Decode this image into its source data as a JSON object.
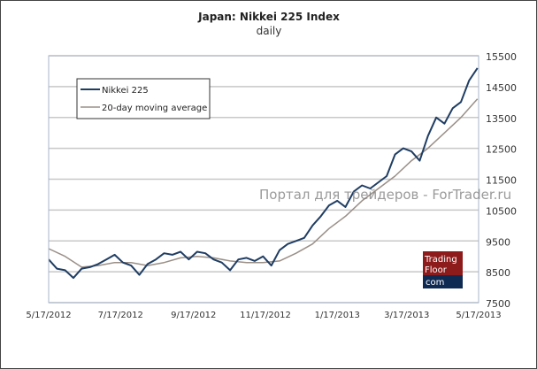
{
  "chart_data": {
    "type": "line",
    "title": "Japan: Nikkei 225 Index",
    "subtitle": "daily",
    "xlabel": "",
    "ylabel": "",
    "x_unit": "days since 5/17/2012",
    "xlim": [
      0,
      365
    ],
    "ylim": [
      7500,
      15500
    ],
    "yticks": [
      7500,
      8500,
      9500,
      10500,
      11500,
      12500,
      13500,
      14500,
      15500
    ],
    "xticks": [
      {
        "day": 0,
        "label": "5/17/2012"
      },
      {
        "day": 61,
        "label": "7/17/2012"
      },
      {
        "day": 123,
        "label": "9/17/2012"
      },
      {
        "day": 184,
        "label": "11/17/2012"
      },
      {
        "day": 245,
        "label": "1/17/2013"
      },
      {
        "day": 304,
        "label": "3/17/2013"
      },
      {
        "day": 365,
        "label": "5/17/2013"
      }
    ],
    "grid": true,
    "legend_position": "top-left",
    "series": [
      {
        "name": "Nikkei 225",
        "color": "#1f3d63",
        "x": [
          0,
          7,
          14,
          21,
          28,
          35,
          42,
          49,
          56,
          63,
          70,
          77,
          84,
          91,
          98,
          105,
          112,
          119,
          126,
          133,
          140,
          147,
          154,
          161,
          168,
          175,
          182,
          189,
          196,
          203,
          210,
          217,
          224,
          231,
          238,
          245,
          252,
          259,
          266,
          273,
          280,
          287,
          294,
          301,
          308,
          315,
          322,
          329,
          336,
          343,
          350,
          357,
          364
        ],
        "values": [
          8900,
          8600,
          8550,
          8300,
          8600,
          8650,
          8750,
          8900,
          9050,
          8800,
          8700,
          8400,
          8750,
          8900,
          9100,
          9050,
          9150,
          8900,
          9150,
          9100,
          8900,
          8800,
          8550,
          8900,
          8950,
          8850,
          9000,
          8700,
          9200,
          9400,
          9500,
          9600,
          10000,
          10300,
          10650,
          10800,
          10600,
          11100,
          11300,
          11200,
          11400,
          11600,
          12300,
          12500,
          12400,
          12100,
          12900,
          13500,
          13300,
          13800,
          14000,
          14700,
          15100
        ]
      },
      {
        "name": "20-day moving average",
        "color": "#9a8f88",
        "x": [
          0,
          14,
          28,
          42,
          56,
          70,
          84,
          98,
          112,
          126,
          140,
          154,
          168,
          182,
          196,
          210,
          224,
          238,
          252,
          266,
          280,
          294,
          308,
          322,
          336,
          350,
          364
        ],
        "values": [
          9250,
          9000,
          8650,
          8700,
          8800,
          8800,
          8700,
          8800,
          8950,
          9000,
          8950,
          8850,
          8800,
          8800,
          8850,
          9100,
          9400,
          9900,
          10300,
          10800,
          11200,
          11600,
          12100,
          12500,
          13000,
          13500,
          14100
        ]
      }
    ]
  },
  "logo": {
    "line1": "Trading",
    "line2": "Floor",
    "line3": "com"
  },
  "watermark": "Портал для трейдеров - ForTrader.ru"
}
